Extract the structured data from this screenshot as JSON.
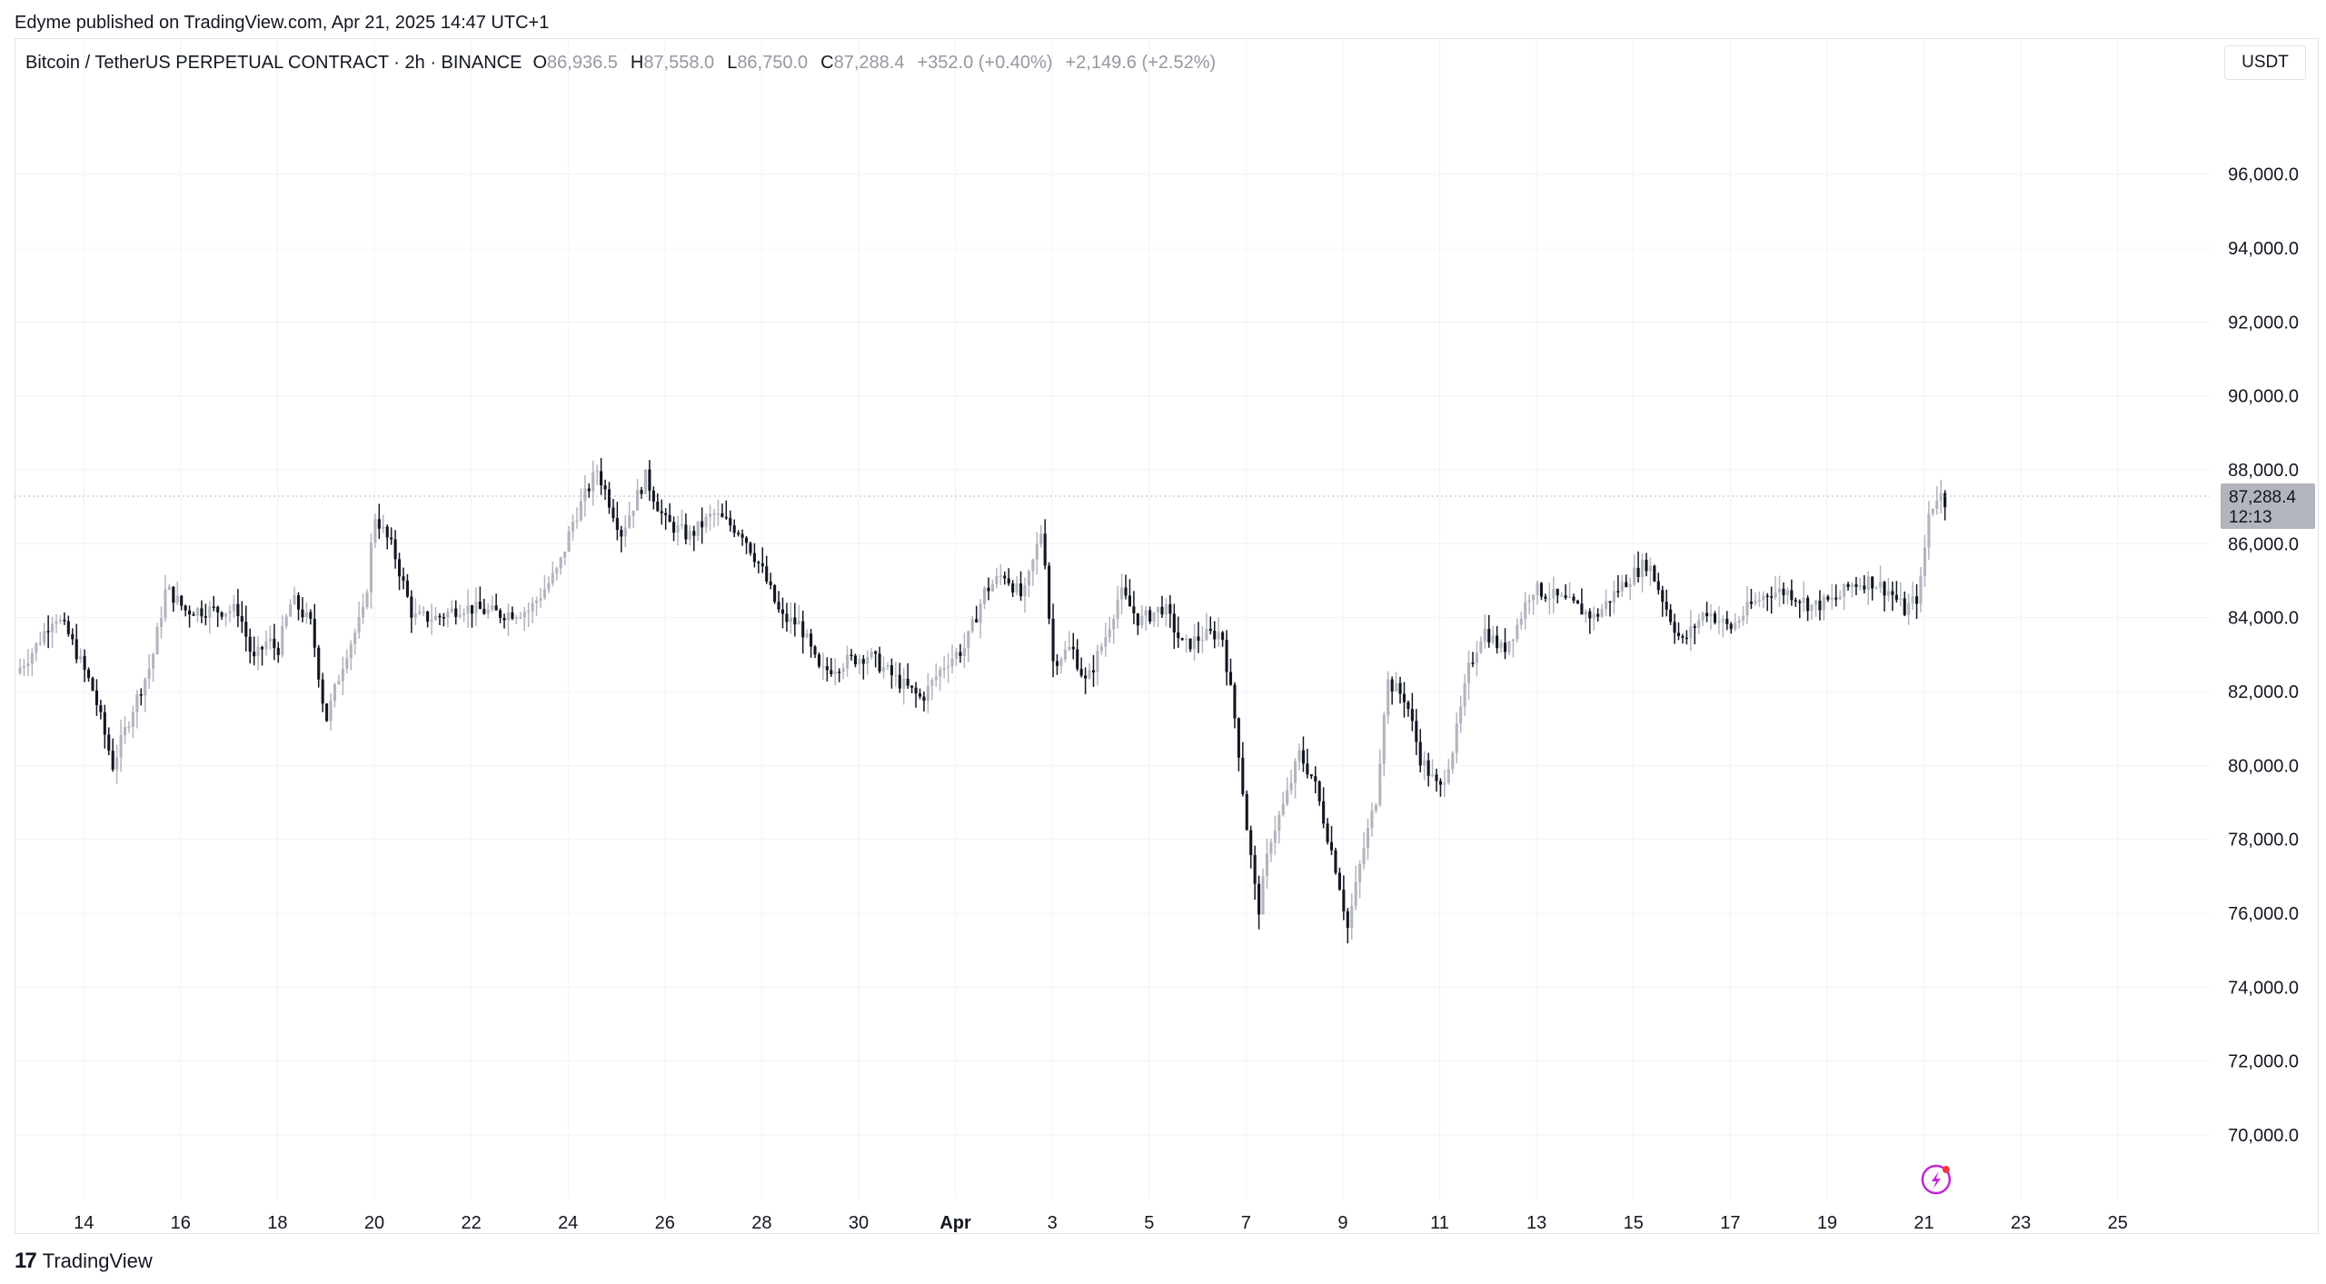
{
  "publisher": "Edyme published on TradingView.com, Apr 21, 2025 14:47 UTC+1",
  "legend": {
    "symbol": "Bitcoin / TetherUS PERPETUAL CONTRACT · 2h · BINANCE",
    "open_label": "O",
    "open": "86,936.5",
    "high_label": "H",
    "high": "87,558.0",
    "low_label": "L",
    "low": "86,750.0",
    "close_label": "C",
    "close": "87,288.4",
    "change": "+352.0 (+0.40%)",
    "change2": "+2,149.6 (+2.52%)"
  },
  "currency": "USDT",
  "footer": {
    "brand": "TradingView",
    "brand_mark": "17"
  },
  "colors": {
    "bull": "#b2b5be",
    "bear": "#131722",
    "grid": "#f0f3fa",
    "price_label_bg": "#b2b5be",
    "flash_icon": "#c026d3"
  },
  "icons": {
    "flash": "lightning-icon"
  },
  "chart_data": {
    "type": "candlestick",
    "title": "",
    "interval": "2h",
    "ylim": [
      68500,
      98500
    ],
    "y_ticks": [
      70000,
      72000,
      74000,
      76000,
      78000,
      80000,
      82000,
      84000,
      86000,
      88000,
      90000,
      92000,
      94000,
      96000
    ],
    "y_tick_labels": [
      "70,000.0",
      "72,000.0",
      "74,000.0",
      "76,000.0",
      "78,000.0",
      "80,000.0",
      "82,000.0",
      "84,000.0",
      "86,000.0",
      "88,000.0",
      "90,000.0",
      "92,000.0",
      "94,000.0",
      "96,000.0"
    ],
    "x_tick_labels": [
      "14",
      "16",
      "18",
      "20",
      "22",
      "24",
      "26",
      "28",
      "30",
      "Apr",
      "3",
      "5",
      "7",
      "9",
      "11",
      "13",
      "15",
      "17",
      "19",
      "21",
      "23",
      "25"
    ],
    "x_ticks_days_from_mar14": [
      0,
      2,
      4,
      6,
      8,
      10,
      12,
      14,
      16,
      18,
      20,
      22,
      24,
      26,
      28,
      30,
      32,
      34,
      36,
      38,
      40,
      42
    ],
    "x_range_days_from_mar14": [
      -1.43,
      43.9
    ],
    "last_price": 87288.4,
    "last_price_label": "87,288.4",
    "countdown": "12:13",
    "anchors_days_from_mar14": [
      [
        -1.4,
        82500
      ],
      [
        -1.0,
        83200
      ],
      [
        -0.6,
        84100
      ],
      [
        -0.3,
        83500
      ],
      [
        0.2,
        82000
      ],
      [
        0.6,
        80000
      ],
      [
        1.0,
        81500
      ],
      [
        1.4,
        82800
      ],
      [
        1.7,
        84800
      ],
      [
        2.1,
        84200
      ],
      [
        2.6,
        84200
      ],
      [
        3.2,
        84200
      ],
      [
        3.5,
        82800
      ],
      [
        3.8,
        83400
      ],
      [
        4.0,
        83100
      ],
      [
        4.3,
        84500
      ],
      [
        4.7,
        83800
      ],
      [
        5.0,
        81200
      ],
      [
        5.4,
        83000
      ],
      [
        5.8,
        84200
      ],
      [
        6.0,
        86800
      ],
      [
        6.4,
        85800
      ],
      [
        6.8,
        84000
      ],
      [
        7.3,
        84000
      ],
      [
        7.8,
        84300
      ],
      [
        8.6,
        84100
      ],
      [
        9.2,
        84200
      ],
      [
        9.8,
        85300
      ],
      [
        10.1,
        86600
      ],
      [
        10.6,
        88000
      ],
      [
        11.1,
        86300
      ],
      [
        11.6,
        87800
      ],
      [
        12.0,
        86600
      ],
      [
        12.5,
        86200
      ],
      [
        13.0,
        86800
      ],
      [
        13.6,
        86300
      ],
      [
        14.0,
        85300
      ],
      [
        14.4,
        84000
      ],
      [
        14.8,
        83800
      ],
      [
        15.2,
        82500
      ],
      [
        15.7,
        82800
      ],
      [
        16.2,
        83000
      ],
      [
        16.8,
        82300
      ],
      [
        17.3,
        81800
      ],
      [
        17.8,
        82800
      ],
      [
        18.2,
        83200
      ],
      [
        18.6,
        84700
      ],
      [
        19.0,
        85200
      ],
      [
        19.4,
        84500
      ],
      [
        19.8,
        86500
      ],
      [
        20.0,
        82800
      ],
      [
        20.4,
        83200
      ],
      [
        20.7,
        82200
      ],
      [
        21.1,
        83500
      ],
      [
        21.4,
        84700
      ],
      [
        21.8,
        83900
      ],
      [
        22.3,
        84300
      ],
      [
        22.7,
        83200
      ],
      [
        23.1,
        83500
      ],
      [
        23.5,
        83600
      ],
      [
        23.8,
        81000
      ],
      [
        24.0,
        78500
      ],
      [
        24.25,
        76000
      ],
      [
        24.5,
        78000
      ],
      [
        24.8,
        79000
      ],
      [
        25.1,
        80300
      ],
      [
        25.4,
        79600
      ],
      [
        25.9,
        77000
      ],
      [
        26.1,
        75600
      ],
      [
        26.4,
        77600
      ],
      [
        26.7,
        79200
      ],
      [
        26.9,
        82300
      ],
      [
        27.3,
        81800
      ],
      [
        27.6,
        80200
      ],
      [
        28.0,
        79300
      ],
      [
        28.3,
        80600
      ],
      [
        28.6,
        82600
      ],
      [
        28.9,
        83700
      ],
      [
        29.3,
        83100
      ],
      [
        29.6,
        83800
      ],
      [
        29.9,
        84800
      ],
      [
        30.3,
        84600
      ],
      [
        30.8,
        84300
      ],
      [
        31.2,
        84000
      ],
      [
        31.7,
        84800
      ],
      [
        32.1,
        85300
      ],
      [
        32.3,
        85500
      ],
      [
        32.7,
        84200
      ],
      [
        33.0,
        83300
      ],
      [
        33.5,
        84200
      ],
      [
        34.0,
        83700
      ],
      [
        34.4,
        84300
      ],
      [
        34.8,
        84700
      ],
      [
        35.2,
        84700
      ],
      [
        35.7,
        84300
      ],
      [
        36.2,
        84500
      ],
      [
        36.5,
        84900
      ],
      [
        36.9,
        85000
      ],
      [
        37.3,
        84700
      ],
      [
        37.6,
        84200
      ],
      [
        37.9,
        84600
      ],
      [
        38.1,
        86800
      ],
      [
        38.3,
        87400
      ],
      [
        38.45,
        87100
      ]
    ]
  }
}
